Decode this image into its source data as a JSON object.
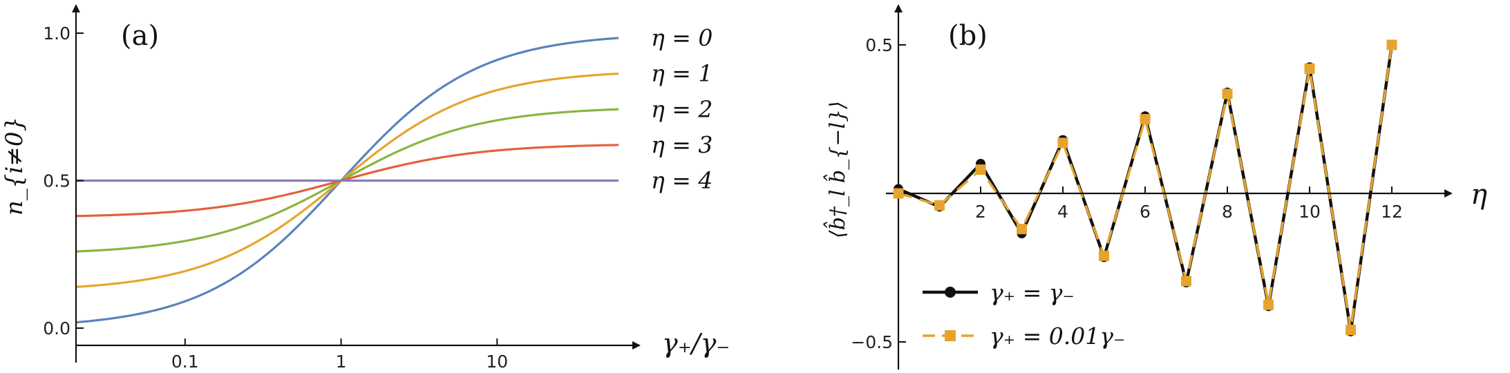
{
  "chart_data": [
    {
      "panel": "(a)",
      "type": "line",
      "title": "",
      "xlabel": "γ₊/γ₋",
      "ylabel": "n_{i≠0}",
      "x_scale": "log",
      "xlim": [
        0.02,
        60
      ],
      "ylim": [
        0,
        1
      ],
      "xticks": [
        {
          "value": 0.1,
          "label": "0.1"
        },
        {
          "value": 1,
          "label": "1"
        },
        {
          "value": 10,
          "label": "10"
        }
      ],
      "yticks": [
        {
          "value": 0.0,
          "label": "0.0"
        },
        {
          "value": 0.5,
          "label": "0.5"
        },
        {
          "value": 1.0,
          "label": "1.0"
        }
      ],
      "series": [
        {
          "name": "η = 0",
          "eta": 0,
          "color": "#5b82bd",
          "low_limit": 0.0,
          "high_limit": 1.0
        },
        {
          "name": "η = 1",
          "eta": 1,
          "color": "#e6a42e",
          "low_limit": 0.125,
          "high_limit": 0.875
        },
        {
          "name": "η = 2",
          "eta": 2,
          "color": "#8cb43f",
          "low_limit": 0.25,
          "high_limit": 0.75
        },
        {
          "name": "η = 3",
          "eta": 3,
          "color": "#e2613c",
          "low_limit": 0.375,
          "high_limit": 0.625
        },
        {
          "name": "η = 4",
          "eta": 4,
          "color": "#8c7bbd",
          "low_limit": 0.5,
          "high_limit": 0.5
        }
      ]
    },
    {
      "panel": "(b)",
      "type": "line",
      "title": "",
      "xlabel": "η",
      "ylabel": "⟨b̂†_l b̂_{−l}⟩",
      "xlim": [
        -0.5,
        13.5
      ],
      "ylim": [
        -0.6,
        0.6
      ],
      "xticks": [
        {
          "value": 2,
          "label": "2"
        },
        {
          "value": 4,
          "label": "4"
        },
        {
          "value": 6,
          "label": "6"
        },
        {
          "value": 8,
          "label": "8"
        },
        {
          "value": 10,
          "label": "10"
        },
        {
          "value": 12,
          "label": "12"
        }
      ],
      "yticks": [
        {
          "value": -0.5,
          "label": "−0.5"
        },
        {
          "value": 0.5,
          "label": "0.5"
        }
      ],
      "legend_position": "bottom-left",
      "series": [
        {
          "name": "γ₊ = γ₋",
          "color": "#111111",
          "style": "solid",
          "marker": "circle",
          "x": [
            0,
            1,
            2,
            3,
            4,
            5,
            6,
            7,
            8,
            9,
            10,
            11,
            12
          ],
          "y": [
            0.015,
            -0.045,
            0.1,
            -0.135,
            0.18,
            -0.215,
            0.26,
            -0.3,
            0.34,
            -0.38,
            0.425,
            -0.465,
            0.5
          ]
        },
        {
          "name": "γ₊ = 0.01γ₋",
          "color": "#e6a42e",
          "style": "dashed",
          "marker": "square",
          "x": [
            0,
            1,
            2,
            3,
            4,
            5,
            6,
            7,
            8,
            9,
            10,
            11,
            12
          ],
          "y": [
            0.0,
            -0.04,
            0.08,
            -0.12,
            0.17,
            -0.21,
            0.25,
            -0.295,
            0.335,
            -0.375,
            0.42,
            -0.46,
            0.5
          ]
        }
      ]
    }
  ]
}
